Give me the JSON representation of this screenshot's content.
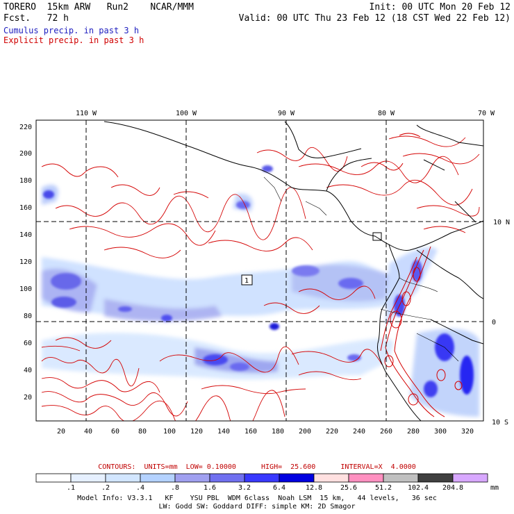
{
  "header": {
    "model": "TORERO  15km ARW   Run2    NCAR/MMM",
    "fcst": "Fcst.   72 h",
    "init": "Init: 00 UTC Mon 20 Feb 12",
    "valid": "Valid: 00 UTC Thu 23 Feb 12 (18 CST Wed 22 Feb 12)"
  },
  "legend": {
    "cumulus": "Cumulus precip. in past 3 h",
    "explicit": "Explicit precip. in past 3 h",
    "cumulus_color": "#2020c0",
    "explicit_color": "#d00000"
  },
  "map": {
    "lon_labels": [
      "110 W",
      "100 W",
      "90 W",
      "80 W",
      "70 W"
    ],
    "lat_labels": [
      "10 N",
      "0",
      "10 S"
    ],
    "y_ticks": [
      "220",
      "200",
      "180",
      "160",
      "140",
      "120",
      "100",
      "80",
      "60",
      "40",
      "20"
    ],
    "x_ticks": [
      "20",
      "40",
      "60",
      "80",
      "100",
      "120",
      "140",
      "160",
      "180",
      "200",
      "220",
      "240",
      "260",
      "280",
      "300",
      "320"
    ],
    "station_labels": [
      "1"
    ]
  },
  "contours": {
    "text": "CONTOURS:  UNITS=mm  LOW= 0.10000      HIGH=  25.600      INTERVAL=X  4.0000"
  },
  "colorbar": {
    "labels": [
      ".1",
      ".2",
      ".4",
      ".8",
      "1.6",
      "3.2",
      "6.4",
      "12.8",
      "25.6",
      "51.2",
      "102.4",
      "204.8"
    ],
    "unit": "mm",
    "colors": [
      "#ffffff",
      "#ffffff",
      "#e6f0ff",
      "#d2e6ff",
      "#b4d2ff",
      "#a0a0f0",
      "#7070f0",
      "#3838ff",
      "#0000e0",
      "#ffe0e0",
      "#ff90c0",
      "#c0c0c0",
      "#404040",
      "#d8a8ff"
    ]
  },
  "footer": {
    "line1": "Model Info: V3.3.1   KF    YSU PBL  WDM 6class  Noah LSM  15 km,   44 levels,   36 sec",
    "line2": "LW: Godd SW: Goddard DIFF: simple KM: 2D Smagor"
  }
}
